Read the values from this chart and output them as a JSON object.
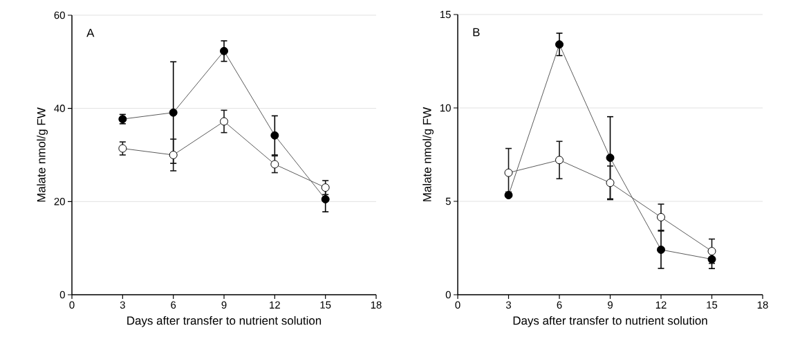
{
  "chart_data": [
    {
      "type": "line",
      "xlabel": "Days after transfer to nutrient solution",
      "ylabel": "Malate nmol/g  FW",
      "annotations": [
        "A"
      ],
      "x": [
        3,
        6,
        9,
        12,
        15
      ],
      "xlim": [
        0,
        18
      ],
      "xticks": [
        0,
        3,
        6,
        9,
        12,
        15,
        18
      ],
      "ylim": [
        0,
        60
      ],
      "yticks": [
        0,
        20,
        40,
        60
      ],
      "grid": "y",
      "marker": "circle",
      "line_style": "solid",
      "series": [
        {
          "color": "#000000",
          "values": [
            37.7,
            39.1,
            52.3,
            34.2,
            20.5
          ],
          "errors": [
            1.0,
            10.9,
            2.2,
            4.2,
            2.7
          ]
        },
        {
          "color": "#ffffff",
          "values": [
            31.4,
            30.0,
            37.2,
            28.0,
            23.0
          ],
          "errors": [
            1.4,
            3.4,
            2.4,
            1.8,
            1.5
          ]
        }
      ]
    },
    {
      "type": "line",
      "xlabel": "Days after transfer to nutrient solution",
      "ylabel": "Malate nmol/g  FW",
      "annotations": [
        "B"
      ],
      "x": [
        3,
        6,
        9,
        12,
        15
      ],
      "xlim": [
        0,
        18
      ],
      "xticks": [
        0,
        3,
        6,
        9,
        12,
        15,
        18
      ],
      "ylim": [
        0,
        15
      ],
      "yticks": [
        0,
        5,
        10,
        15
      ],
      "grid": "y",
      "marker": "circle",
      "line_style": "solid",
      "series": [
        {
          "color": "#000000",
          "values": [
            5.33,
            13.4,
            7.33,
            2.41,
            1.9
          ],
          "errors": [
            0.1,
            0.6,
            2.2,
            1.0,
            0.5
          ]
        },
        {
          "color": "#ffffff",
          "values": [
            6.53,
            7.21,
            5.99,
            4.15,
            2.33
          ],
          "errors": [
            [
              5.5,
              7.83
            ],
            1.0,
            0.9,
            0.7,
            0.65
          ]
        }
      ]
    }
  ]
}
